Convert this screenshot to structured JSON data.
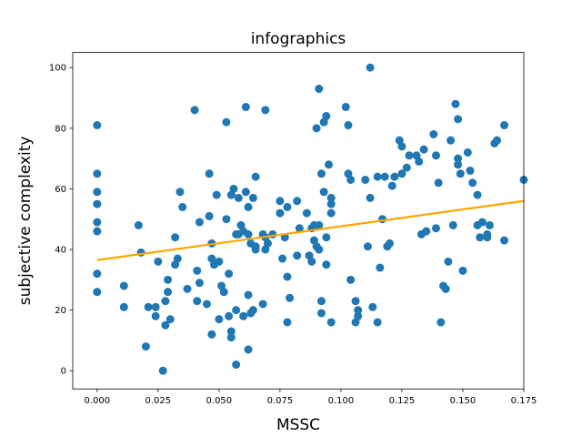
{
  "chart_data": {
    "type": "scatter",
    "title": "infographics",
    "xlabel": "MSSC",
    "ylabel": "subjective complexity",
    "xlim": [
      -0.01,
      0.175
    ],
    "ylim": [
      -6,
      105
    ],
    "x_ticks": [
      "0.000",
      "0.025",
      "0.050",
      "0.075",
      "0.100",
      "0.125",
      "0.150",
      "0.175"
    ],
    "x_tick_values": [
      0,
      0.025,
      0.05,
      0.075,
      0.1,
      0.125,
      0.15,
      0.175
    ],
    "y_ticks": [
      "0",
      "20",
      "40",
      "60",
      "80",
      "100"
    ],
    "y_tick_values": [
      0,
      20,
      40,
      60,
      80,
      100
    ],
    "grid": false,
    "point_color": "#1f77b4",
    "line_color": "#ffa500",
    "trend_line": {
      "x": [
        0,
        0.175
      ],
      "y": [
        36.5,
        56
      ]
    },
    "points": [
      [
        0.0,
        81
      ],
      [
        0.0,
        65
      ],
      [
        0.0,
        59
      ],
      [
        0.0,
        55
      ],
      [
        0.0,
        49
      ],
      [
        0.0,
        46
      ],
      [
        0.0,
        32
      ],
      [
        0.0,
        26
      ],
      [
        0.011,
        28
      ],
      [
        0.011,
        21
      ],
      [
        0.017,
        48
      ],
      [
        0.018,
        39
      ],
      [
        0.02,
        8
      ],
      [
        0.021,
        21
      ],
      [
        0.024,
        21
      ],
      [
        0.024,
        18
      ],
      [
        0.025,
        36
      ],
      [
        0.027,
        0
      ],
      [
        0.028,
        23
      ],
      [
        0.028,
        15
      ],
      [
        0.029,
        30
      ],
      [
        0.029,
        26
      ],
      [
        0.03,
        17
      ],
      [
        0.032,
        44
      ],
      [
        0.032,
        35
      ],
      [
        0.033,
        37
      ],
      [
        0.034,
        59
      ],
      [
        0.035,
        54
      ],
      [
        0.037,
        27
      ],
      [
        0.04,
        86
      ],
      [
        0.041,
        23
      ],
      [
        0.041,
        33
      ],
      [
        0.042,
        49
      ],
      [
        0.042,
        29
      ],
      [
        0.045,
        22
      ],
      [
        0.046,
        65
      ],
      [
        0.046,
        51
      ],
      [
        0.047,
        42
      ],
      [
        0.047,
        37
      ],
      [
        0.047,
        12
      ],
      [
        0.048,
        35
      ],
      [
        0.049,
        58
      ],
      [
        0.05,
        36
      ],
      [
        0.05,
        17
      ],
      [
        0.051,
        28
      ],
      [
        0.052,
        26
      ],
      [
        0.053,
        82
      ],
      [
        0.053,
        50
      ],
      [
        0.054,
        18
      ],
      [
        0.054,
        32
      ],
      [
        0.055,
        58
      ],
      [
        0.055,
        13
      ],
      [
        0.055,
        11
      ],
      [
        0.056,
        60
      ],
      [
        0.057,
        45
      ],
      [
        0.057,
        20
      ],
      [
        0.057,
        2
      ],
      [
        0.058,
        57
      ],
      [
        0.058,
        45
      ],
      [
        0.059,
        48
      ],
      [
        0.06,
        46
      ],
      [
        0.06,
        18
      ],
      [
        0.061,
        87
      ],
      [
        0.061,
        59
      ],
      [
        0.062,
        54
      ],
      [
        0.062,
        45
      ],
      [
        0.062,
        25
      ],
      [
        0.062,
        7
      ],
      [
        0.063,
        42
      ],
      [
        0.063,
        19
      ],
      [
        0.064,
        20
      ],
      [
        0.064,
        57
      ],
      [
        0.065,
        64
      ],
      [
        0.065,
        41
      ],
      [
        0.065,
        40
      ],
      [
        0.068,
        22
      ],
      [
        0.068,
        45
      ],
      [
        0.069,
        86
      ],
      [
        0.069,
        44
      ],
      [
        0.069,
        40
      ],
      [
        0.07,
        42
      ],
      [
        0.072,
        45
      ],
      [
        0.075,
        56
      ],
      [
        0.075,
        52
      ],
      [
        0.076,
        37
      ],
      [
        0.077,
        44
      ],
      [
        0.078,
        54
      ],
      [
        0.078,
        31
      ],
      [
        0.078,
        16
      ],
      [
        0.079,
        24
      ],
      [
        0.082,
        56
      ],
      [
        0.082,
        38
      ],
      [
        0.083,
        47
      ],
      [
        0.086,
        52
      ],
      [
        0.087,
        38
      ],
      [
        0.088,
        47
      ],
      [
        0.088,
        36
      ],
      [
        0.089,
        48
      ],
      [
        0.089,
        43
      ],
      [
        0.09,
        80
      ],
      [
        0.09,
        41
      ],
      [
        0.091,
        93
      ],
      [
        0.091,
        48
      ],
      [
        0.091,
        40
      ],
      [
        0.092,
        65
      ],
      [
        0.092,
        23
      ],
      [
        0.092,
        19
      ],
      [
        0.093,
        59
      ],
      [
        0.093,
        82
      ],
      [
        0.094,
        84
      ],
      [
        0.094,
        44
      ],
      [
        0.094,
        35
      ],
      [
        0.095,
        68
      ],
      [
        0.096,
        57
      ],
      [
        0.096,
        55
      ],
      [
        0.096,
        52
      ],
      [
        0.096,
        16
      ],
      [
        0.102,
        87
      ],
      [
        0.103,
        81
      ],
      [
        0.103,
        65
      ],
      [
        0.104,
        63
      ],
      [
        0.104,
        30
      ],
      [
        0.106,
        23
      ],
      [
        0.106,
        16
      ],
      [
        0.107,
        20
      ],
      [
        0.107,
        18
      ],
      [
        0.11,
        63
      ],
      [
        0.111,
        41
      ],
      [
        0.112,
        57
      ],
      [
        0.112,
        100
      ],
      [
        0.113,
        21
      ],
      [
        0.115,
        16
      ],
      [
        0.115,
        64
      ],
      [
        0.116,
        34
      ],
      [
        0.117,
        50
      ],
      [
        0.118,
        64
      ],
      [
        0.119,
        41
      ],
      [
        0.12,
        42
      ],
      [
        0.121,
        61
      ],
      [
        0.122,
        64
      ],
      [
        0.124,
        76
      ],
      [
        0.125,
        74
      ],
      [
        0.125,
        65
      ],
      [
        0.127,
        67
      ],
      [
        0.128,
        71
      ],
      [
        0.131,
        71
      ],
      [
        0.132,
        69
      ],
      [
        0.133,
        45
      ],
      [
        0.134,
        73
      ],
      [
        0.135,
        46
      ],
      [
        0.138,
        78
      ],
      [
        0.139,
        71
      ],
      [
        0.139,
        47
      ],
      [
        0.14,
        62
      ],
      [
        0.141,
        16
      ],
      [
        0.142,
        28
      ],
      [
        0.143,
        27
      ],
      [
        0.144,
        36
      ],
      [
        0.145,
        76
      ],
      [
        0.146,
        48
      ],
      [
        0.147,
        88
      ],
      [
        0.148,
        83
      ],
      [
        0.148,
        68
      ],
      [
        0.148,
        70
      ],
      [
        0.149,
        65
      ],
      [
        0.15,
        33
      ],
      [
        0.152,
        72
      ],
      [
        0.153,
        66
      ],
      [
        0.154,
        62
      ],
      [
        0.156,
        58
      ],
      [
        0.156,
        48
      ],
      [
        0.157,
        44
      ],
      [
        0.158,
        49
      ],
      [
        0.16,
        44
      ],
      [
        0.16,
        45
      ],
      [
        0.161,
        48
      ],
      [
        0.163,
        75
      ],
      [
        0.164,
        76
      ],
      [
        0.167,
        81
      ],
      [
        0.167,
        43
      ],
      [
        0.175,
        63
      ]
    ]
  }
}
